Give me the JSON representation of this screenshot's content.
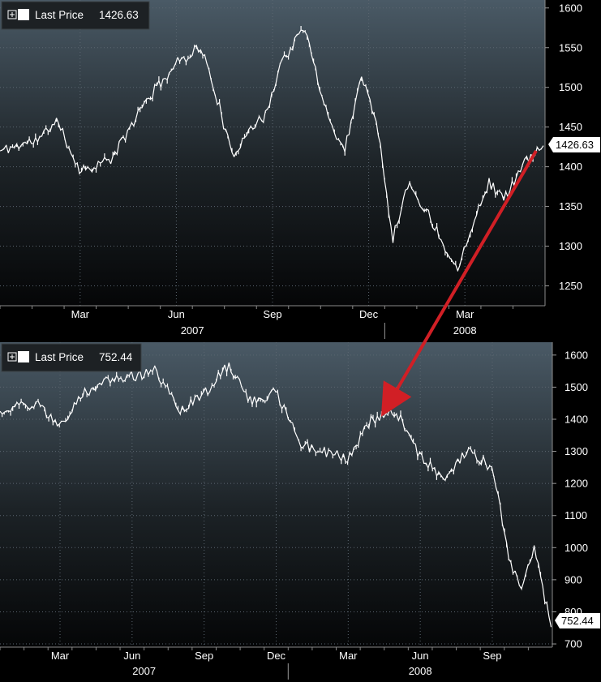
{
  "chart_data": [
    {
      "type": "line",
      "legend": {
        "label": "Last Price",
        "value": "1426.63"
      },
      "last_value_label": "1426.63",
      "yticks": [
        "1600",
        "1550",
        "1500",
        "1450",
        "1400",
        "1350",
        "1300",
        "1250"
      ],
      "ylim": [
        1225,
        1610
      ],
      "month_ticks": [
        "Mar",
        "Jun",
        "Sep",
        "Dec",
        "Mar"
      ],
      "year_ticks": [
        "2007",
        "2008"
      ],
      "grid": true,
      "series": [
        {
          "x": [
            "2007-01",
            "2007-02",
            "2007-02",
            "2007-03",
            "2007-04",
            "2007-05",
            "2007-06",
            "2007-07",
            "2007-07",
            "2007-08",
            "2007-08",
            "2007-09",
            "2007-09",
            "2007-10",
            "2007-11",
            "2007-11",
            "2007-12",
            "2007-12",
            "2008-01",
            "2008-01",
            "2008-02",
            "2008-03",
            "2008-03",
            "2008-04",
            "2008-04",
            "2008-05",
            "2008-05"
          ],
          "values": [
            1420,
            1435,
            1459,
            1395,
            1410,
            1480,
            1530,
            1552,
            1490,
            1410,
            1450,
            1460,
            1530,
            1575,
            1460,
            1420,
            1515,
            1460,
            1310,
            1380,
            1330,
            1270,
            1330,
            1380,
            1360,
            1400,
            1426.63
          ]
        }
      ]
    },
    {
      "type": "line",
      "legend": {
        "label": "Last Price",
        "value": "752.44"
      },
      "last_value_label": "752.44",
      "yticks": [
        "1600",
        "1500",
        "1400",
        "1300",
        "1200",
        "1100",
        "1000",
        "900",
        "800",
        "700"
      ],
      "ylim": [
        690,
        1640
      ],
      "month_ticks": [
        "Mar",
        "Jun",
        "Sep",
        "Dec",
        "Mar",
        "Jun",
        "Sep"
      ],
      "year_ticks": [
        "2007",
        "2008"
      ],
      "grid": true,
      "series": [
        {
          "x": [
            "2007-01",
            "2007-02",
            "2007-03",
            "2007-04",
            "2007-05",
            "2007-07",
            "2007-08",
            "2007-09",
            "2007-10",
            "2007-11",
            "2007-12",
            "2008-01",
            "2008-03",
            "2008-04",
            "2008-05",
            "2008-06",
            "2008-07",
            "2008-08",
            "2008-09",
            "2008-10",
            "2008-10",
            "2008-11",
            "2008-11"
          ],
          "values": [
            1425,
            1450,
            1380,
            1480,
            1520,
            1550,
            1420,
            1480,
            1565,
            1450,
            1490,
            1320,
            1280,
            1400,
            1425,
            1280,
            1220,
            1300,
            1250,
            950,
            880,
            1000,
            752.44
          ]
        }
      ]
    }
  ],
  "annotations": {
    "arrow_color": "#d11f25"
  },
  "colors": {
    "line": "#ffffff",
    "legend_box": "#ffffff",
    "label_bg": "#ffffff"
  },
  "icons": [
    "expand-icon",
    "legend-swatch-icon"
  ]
}
